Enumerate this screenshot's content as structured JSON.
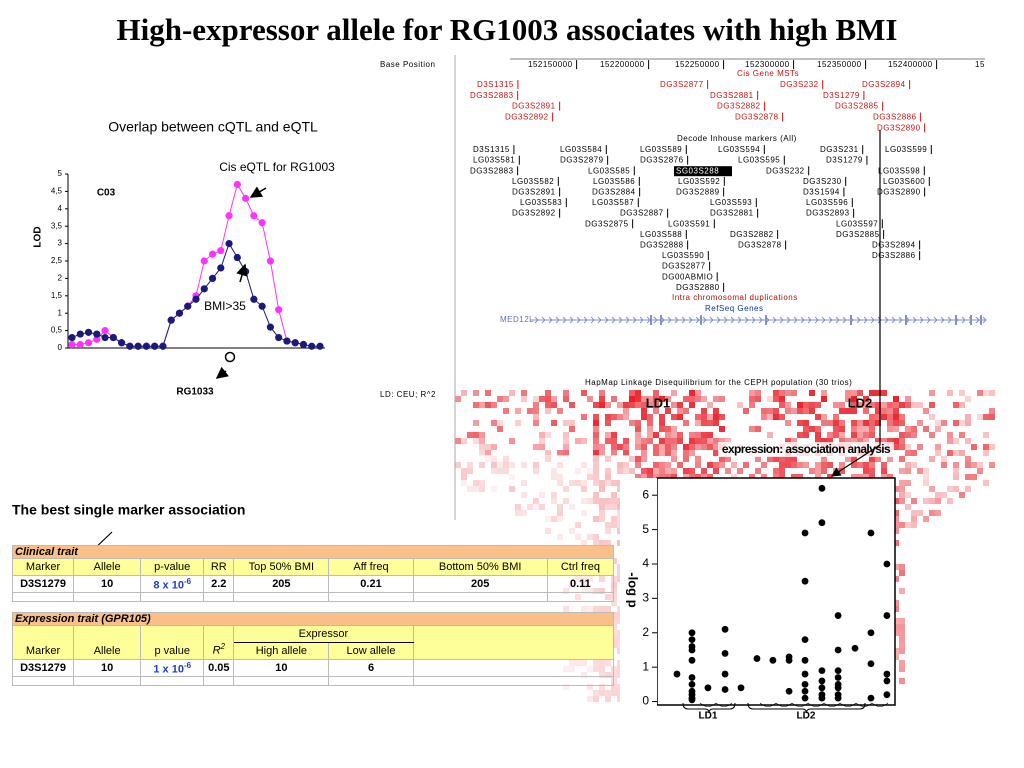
{
  "title": "High-expressor allele for RG1003 associates with high BMI",
  "chart_data": [
    {
      "type": "line",
      "title": "Overlap between cQTL and eQTL",
      "y_label": "LOD",
      "annotations": [
        "Cis eQTL for RG1003",
        "C03",
        "BMI>35",
        "RG1033"
      ],
      "x": [
        1,
        2,
        3,
        4,
        5,
        6,
        7,
        8,
        9,
        10,
        11,
        12,
        13,
        14,
        15,
        16,
        17,
        18,
        19,
        20,
        21,
        22,
        23,
        24,
        25,
        26,
        27,
        28,
        29,
        30,
        31
      ],
      "xlim": [
        1,
        31
      ],
      "ylim": [
        0,
        5
      ],
      "yticks": [
        0,
        {
          "value": 0.5,
          "label": "0,5"
        },
        1,
        {
          "value": 1.5,
          "label": "1,5"
        },
        2,
        {
          "value": 2.5,
          "label": "2,5"
        },
        3,
        {
          "value": 3.5,
          "label": "3,5"
        },
        4,
        {
          "value": 4.5,
          "label": "4,5"
        },
        5
      ],
      "series": [
        {
          "color": "#ff33ff",
          "values": [
            0.1,
            0.1,
            0.15,
            0.25,
            0.5,
            0.3,
            0.15,
            0.05,
            0.05,
            0.05,
            0.05,
            0.05,
            0.8,
            1.0,
            1.2,
            1.5,
            2.5,
            2.7,
            2.8,
            3.8,
            4.7,
            4.3,
            3.8,
            3.6,
            2.5,
            1.1,
            0.2,
            0.15,
            0.1,
            null,
            null
          ]
        },
        {
          "color": "#1a1a7a",
          "values": [
            0.3,
            0.4,
            0.45,
            0.4,
            0.3,
            0.3,
            0.15,
            0.05,
            0.05,
            0.05,
            0.05,
            0.05,
            0.8,
            1.0,
            1.2,
            1.4,
            1.7,
            2.0,
            2.3,
            3.0,
            2.6,
            2.2,
            1.4,
            1.2,
            0.6,
            0.3,
            0.2,
            0.15,
            0.1,
            0.05,
            0.05
          ]
        }
      ]
    },
    {
      "type": "scatter",
      "y_label": "-log p",
      "x_labels": [
        "LD1",
        "LD2"
      ],
      "xlim": [
        0,
        100
      ],
      "ylim": [
        -0.1,
        6.5
      ],
      "yticks": [
        0,
        1,
        2,
        3,
        4,
        5,
        6
      ],
      "color": "#000000",
      "x": [
        8.4,
        14.7,
        14.7,
        14.7,
        14.7,
        14.7,
        14.7,
        14.7,
        14.7,
        14.7,
        14.7,
        14.7,
        21.4,
        28.6,
        28.6,
        28.6,
        28.6,
        35.3,
        42.0,
        48.7,
        55.5,
        55.5,
        55.5,
        62.2,
        62.2,
        62.2,
        62.2,
        62.2,
        62.2,
        62.2,
        62.2,
        69.3,
        69.3,
        69.3,
        69.3,
        69.3,
        69.3,
        69.3,
        76.1,
        76.1,
        76.1,
        76.1,
        76.1,
        76.1,
        76.1,
        76.1,
        83.2,
        89.9,
        89.9,
        89.9,
        89.9,
        96.6,
        96.6,
        96.6,
        96.6,
        96.6
      ],
      "values": [
        0.8,
        2.0,
        1.8,
        1.6,
        1.5,
        1.2,
        0.7,
        0.5,
        0.3,
        0.2,
        0.1,
        0.05,
        0.4,
        2.1,
        1.4,
        0.8,
        0.35,
        0.4,
        1.25,
        1.2,
        1.3,
        1.2,
        0.3,
        4.9,
        3.5,
        1.8,
        1.2,
        0.8,
        0.5,
        0.3,
        0.1,
        6.2,
        5.2,
        0.9,
        0.6,
        0.4,
        0.2,
        0.1,
        2.5,
        1.5,
        0.9,
        0.7,
        0.5,
        0.4,
        0.2,
        0.1,
        1.55,
        4.9,
        2.0,
        1.1,
        0.1,
        4.0,
        2.5,
        0.8,
        0.6,
        0.2
      ]
    }
  ],
  "section_label": "The best single marker association",
  "clinical_table": {
    "title": "Clinical trait",
    "header": [
      "Marker",
      "Allele",
      "p-value",
      "RR",
      "Top 50% BMI",
      "Aff freq",
      "Bottom 50% BMI",
      "Ctrl freq"
    ],
    "rows": [
      [
        "D3S1279",
        10,
        {
          "base": "8 x 10",
          "exp": "-6"
        },
        2.2,
        205,
        0.21,
        205,
        0.11
      ]
    ]
  },
  "expression_table": {
    "title": "Expression trait (GPR105)",
    "group": "Expressor",
    "header": [
      "Marker",
      "Allele",
      "p value",
      {
        "base": "R",
        "exp": "2"
      },
      "High allele",
      "Low allele"
    ],
    "rows": [
      [
        "D3S1279",
        10,
        {
          "base": "1 x 10",
          "exp": "-6"
        },
        0.05,
        10,
        6
      ]
    ]
  },
  "browser": {
    "ruler": [
      "Base Position",
      "152150000",
      "152200000",
      "152250000",
      "152300000",
      "152350000",
      "152400000",
      "15"
    ],
    "mst_title": "Cis Gene MSTs",
    "mst_rows": [
      [
        "D3S1315",
        "DG3S2877",
        "DG3S232",
        "DG3S2894"
      ],
      [
        "DG3S2883",
        "DG3S2881",
        "D3S1279"
      ],
      [
        "DG3S2891",
        "DG3S2882",
        "DG3S2885"
      ],
      [
        "DG3S2892",
        "DG3S2878",
        "DG3S2886"
      ],
      [
        "DG3S2890"
      ]
    ],
    "decode_title": "Decode Inhouse markers (All)",
    "decode_rows": [
      [
        "D3S1315",
        "LG03S584",
        "LG03S589",
        "LG03S594",
        "DG3S231",
        "LG03S599"
      ],
      [
        "LG03S581",
        "DG3S2879",
        "DG3S2876",
        "LG03S595",
        "D3S1279"
      ],
      [
        "DG3S2883",
        "LG03S585",
        "SG03S288",
        "DG3S232",
        "LG03S598"
      ],
      [
        "LG03S582",
        "LG03S586",
        "LG03S592",
        "DG3S230",
        "LG03S600"
      ],
      [
        "DG3S2891",
        "DG3S2884",
        "DG3S2889",
        "D3S1594",
        "DG3S2890"
      ],
      [
        "LG03S583",
        "LG03S587",
        "LG03S593",
        "LG03S596"
      ],
      [
        "DG3S2892",
        "DG3S2887",
        "DG3S2881",
        "DG3S2893"
      ],
      [
        "DG3S2875",
        "LG03S591",
        "LG03S597"
      ],
      [
        "LG03S588",
        "DG3S2882",
        "DG3S2885"
      ],
      [
        "DG3S2888",
        "DG3S2878",
        "DG3S2894"
      ],
      [
        "LG03S590",
        "DG3S2886"
      ],
      [
        "DG3S2877"
      ],
      [
        "DG00ABMIO"
      ],
      [
        "DG3S2880"
      ]
    ],
    "duplications": "Intra chromosomal duplications",
    "refseq": "RefSeq Genes",
    "gene": "MED12L",
    "hapmap_title": "HapMap Linkage Disequilibrium for the CEPH population (30 trios)",
    "ld_label": "LD: CEU; R^2",
    "ld_blocks": [
      "LD1",
      "LD2"
    ],
    "expression_title": "expression: association analysis"
  }
}
